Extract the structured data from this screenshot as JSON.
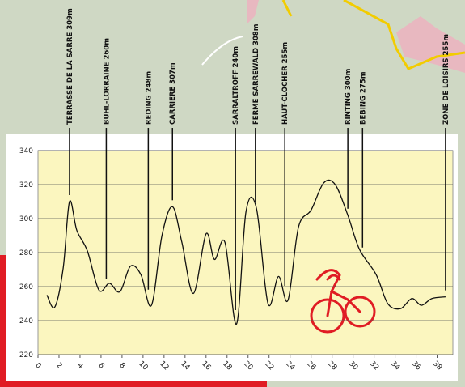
{
  "chart_data": {
    "type": "line",
    "x": [
      0.85,
      1.6,
      2.4,
      3.0,
      3.7,
      4.7,
      5.8,
      6.8,
      7.8,
      8.8,
      9.8,
      10.8,
      11.8,
      12.8,
      13.7,
      14.8,
      16.0,
      16.8,
      17.8,
      18.9,
      19.8,
      20.8,
      21.9,
      22.9,
      23.8,
      24.8,
      26.0,
      27.2,
      28.3,
      29.5,
      30.6,
      32.2,
      33.3,
      34.5,
      35.6,
      36.5,
      37.5,
      38.8
    ],
    "values": [
      255,
      248,
      271,
      310,
      293,
      281,
      258,
      262,
      257,
      272,
      267,
      249,
      290,
      307,
      286,
      256,
      291,
      276,
      286,
      238,
      304,
      306,
      250,
      266,
      252,
      295,
      305,
      321,
      320,
      302,
      282,
      267,
      250,
      247,
      253,
      249,
      253,
      254
    ],
    "color": "#111111",
    "xlim": [
      0,
      39.5
    ],
    "xticks": [
      0,
      2,
      4,
      6,
      8,
      10,
      12,
      14,
      16,
      18,
      20,
      22,
      24,
      26,
      28,
      30,
      32,
      34,
      36,
      38
    ],
    "ylim": [
      220,
      340
    ],
    "yticks": [
      220,
      240,
      260,
      280,
      300,
      320,
      340
    ],
    "grid": true,
    "annotations": [
      {
        "label": "TERRASSE DE LA SARRE  309m",
        "x": 3.0
      },
      {
        "label": "BUHL-LORRAINE  260m",
        "x": 6.5
      },
      {
        "label": "REDING  248m",
        "x": 10.5
      },
      {
        "label": "CARRIERE  307m",
        "x": 12.8
      },
      {
        "label": "SARRALTROFF  240m",
        "x": 18.8
      },
      {
        "label": "FERME SARREWALD  308m",
        "x": 20.7
      },
      {
        "label": "HAUT-CLOCHER  255m",
        "x": 23.5
      },
      {
        "label": "RINTING  300m",
        "x": 29.5
      },
      {
        "label": "BEBING  275m",
        "x": 30.9
      },
      {
        "label": "ZONE DE LOISIRS  255m",
        "x": 38.8
      }
    ]
  }
}
